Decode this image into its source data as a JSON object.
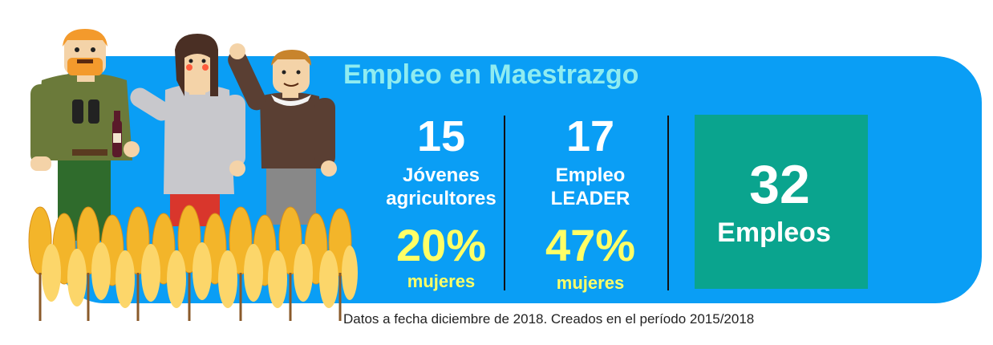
{
  "title": "Empleo en Maestrazgo",
  "stats": [
    {
      "number": "15",
      "label_line1": "Jóvenes",
      "label_line2": "agricultores",
      "percent": "20%",
      "percent_label": "mujeres"
    },
    {
      "number": "17",
      "label_line1": "Empleo",
      "label_line2": "LEADER",
      "percent": "47%",
      "percent_label": "mujeres"
    }
  ],
  "total": {
    "number": "32",
    "label": "Empleos"
  },
  "footnote": "Datos a fecha diciembre de 2018. Creados en el período 2015/2018",
  "colors": {
    "panel": "#0a9ef5",
    "title": "#8fecf0",
    "percent": "#ffff66",
    "total_box": "#0aa48e"
  },
  "illustration": {
    "name": "farmers-in-wheat-field"
  }
}
